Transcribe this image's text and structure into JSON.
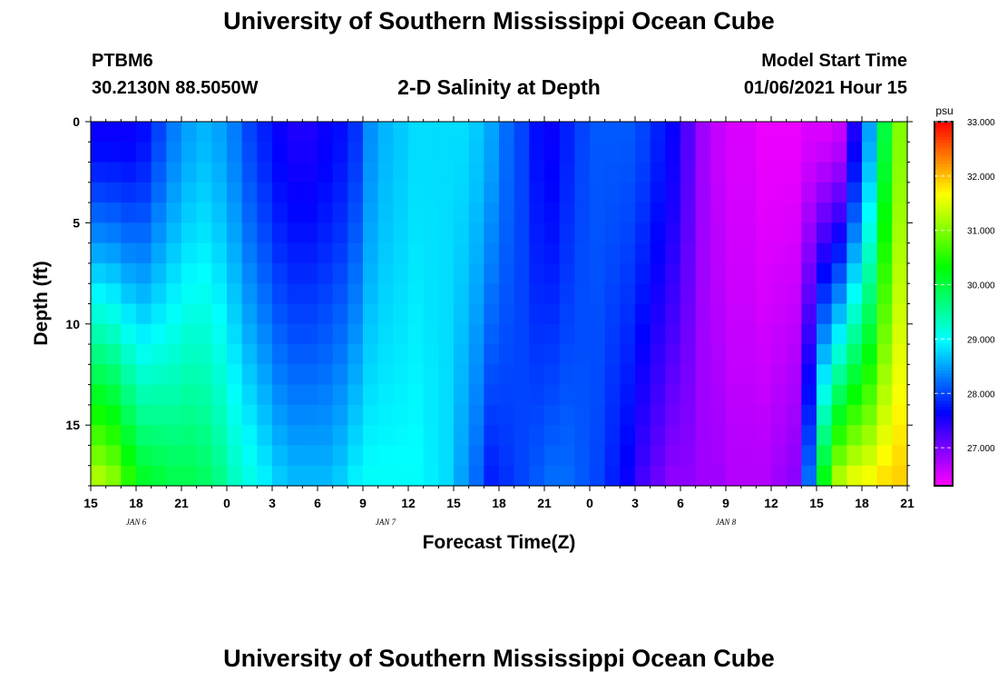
{
  "page": {
    "title": "University of Southern Mississippi Ocean Cube",
    "footer_title": "University of Southern Mississippi Ocean Cube"
  },
  "header": {
    "station": "PTBM6",
    "coords": "30.2130N 88.5050W",
    "model_label": "Model Start Time",
    "model_time": "01/06/2021 Hour 15"
  },
  "chart_data": {
    "type": "heatmap",
    "title": "2-D Salinity at Depth",
    "xlabel": "Forecast Time(Z)",
    "ylabel": "Depth (ft)",
    "units": "psu",
    "x_ticks": [
      "15",
      "18",
      "21",
      "0",
      "3",
      "6",
      "9",
      "12",
      "15",
      "18",
      "21",
      "0",
      "3",
      "6",
      "9",
      "12",
      "15",
      "18",
      "21"
    ],
    "day_labels": [
      {
        "text": "JAN  6",
        "at_hour": 3
      },
      {
        "text": "JAN  7",
        "at_hour": 19.5
      },
      {
        "text": "JAN  8",
        "at_hour": 42
      }
    ],
    "x_range_hours": [
      0,
      54
    ],
    "y_ticks": [
      0,
      5,
      10,
      15
    ],
    "y_range": [
      0,
      18
    ],
    "colorbar_ticks": [
      "33.000",
      "32.000",
      "31.000",
      "30.000",
      "29.000",
      "28.000",
      "27.000"
    ],
    "colorbar_values": [
      33,
      32,
      31,
      30,
      29,
      28,
      27
    ],
    "colorbar_range": [
      26.3,
      33.0
    ],
    "n_columns": 54,
    "n_rows": 18,
    "surface_profile": [
      27.6,
      27.6,
      27.6,
      27.7,
      28.0,
      28.3,
      28.5,
      28.6,
      28.5,
      28.3,
      28.0,
      27.8,
      27.6,
      27.5,
      27.5,
      27.6,
      27.7,
      27.9,
      28.4,
      28.6,
      28.7,
      28.8,
      28.8,
      28.8,
      28.8,
      28.7,
      28.5,
      28.2,
      28.0,
      27.7,
      27.6,
      27.8,
      28.0,
      28.1,
      28.1,
      28.1,
      28.0,
      27.8,
      27.6,
      27.2,
      26.8,
      26.6,
      26.5,
      26.5,
      26.4,
      26.4,
      26.4,
      26.5,
      26.5,
      26.6,
      27.5,
      28.5,
      30.0,
      31.0
    ],
    "bottom_profile": [
      31.2,
      31.0,
      30.5,
      30.1,
      30.0,
      29.9,
      29.9,
      29.8,
      29.6,
      29.3,
      29.1,
      28.9,
      28.7,
      28.6,
      28.6,
      28.6,
      28.7,
      28.9,
      29.0,
      29.0,
      29.0,
      29.0,
      28.9,
      28.8,
      28.5,
      28.2,
      27.8,
      27.9,
      28.0,
      28.1,
      28.2,
      28.2,
      28.1,
      28.0,
      27.8,
      27.6,
      27.3,
      27.1,
      26.9,
      26.9,
      26.8,
      26.8,
      26.7,
      26.7,
      26.7,
      26.8,
      26.9,
      28.2,
      30.2,
      31.2,
      31.5,
      31.6,
      31.8,
      31.9
    ]
  }
}
